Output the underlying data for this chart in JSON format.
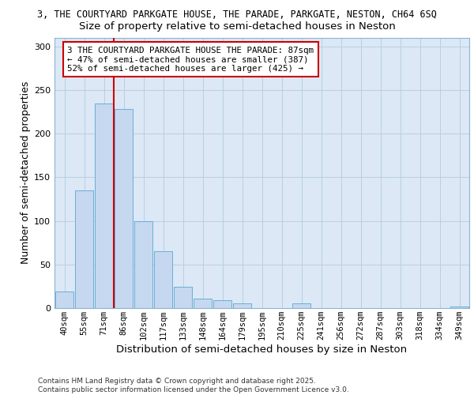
{
  "title_line1": "3, THE COURTYARD PARKGATE HOUSE, THE PARADE, PARKGATE, NESTON, CH64 6SQ",
  "title_line2": "Size of property relative to semi-detached houses in Neston",
  "xlabel": "Distribution of semi-detached houses by size in Neston",
  "ylabel": "Number of semi-detached properties",
  "bar_labels": [
    "40sqm",
    "55sqm",
    "71sqm",
    "86sqm",
    "102sqm",
    "117sqm",
    "133sqm",
    "148sqm",
    "164sqm",
    "179sqm",
    "195sqm",
    "210sqm",
    "225sqm",
    "241sqm",
    "256sqm",
    "272sqm",
    "287sqm",
    "303sqm",
    "318sqm",
    "334sqm",
    "349sqm"
  ],
  "bar_values": [
    19,
    135,
    234,
    228,
    100,
    65,
    24,
    11,
    9,
    5,
    0,
    0,
    5,
    0,
    0,
    0,
    0,
    0,
    0,
    0,
    2
  ],
  "bar_color": "#c5d8ef",
  "bar_edge_color": "#6aaed6",
  "vline_color": "#cc0000",
  "annotation_text": "3 THE COURTYARD PARKGATE HOUSE THE PARADE: 87sqm\n← 47% of semi-detached houses are smaller (387)\n52% of semi-detached houses are larger (425) →",
  "annotation_box_color": "#ffffff",
  "annotation_edge_color": "#cc0000",
  "ylim": [
    0,
    310
  ],
  "yticks": [
    0,
    50,
    100,
    150,
    200,
    250,
    300
  ],
  "grid_color": "#b8cfe0",
  "background_color": "#dce8f5",
  "footer_text": "Contains HM Land Registry data © Crown copyright and database right 2025.\nContains public sector information licensed under the Open Government Licence v3.0.",
  "title_fontsize": 8.5,
  "subtitle_fontsize": 9.5,
  "axis_label_fontsize": 9,
  "tick_fontsize": 7.5,
  "annotation_fontsize": 7.8,
  "footer_fontsize": 6.5
}
